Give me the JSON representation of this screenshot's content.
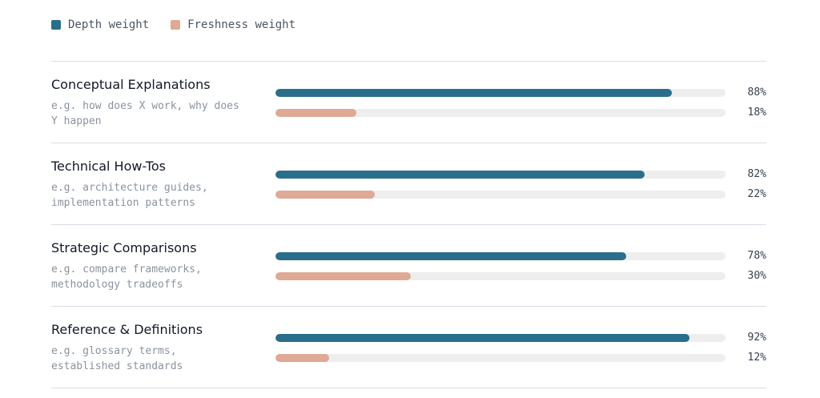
{
  "colors": {
    "depth": "#2a6e8c",
    "freshness": "#dea995"
  },
  "legend": {
    "depth_label": "Depth weight",
    "freshness_label": "Freshness weight"
  },
  "chart_data": {
    "type": "bar",
    "orientation": "horizontal",
    "categories": [
      "Conceptual Explanations",
      "Technical How-Tos",
      "Strategic Comparisons",
      "Reference & Definitions"
    ],
    "descriptions": [
      "e.g. how does X work, why does Y happen",
      "e.g. architecture guides, implementation patterns",
      "e.g. compare frameworks, methodology tradeoffs",
      "e.g. glossary terms, established standards"
    ],
    "series": [
      {
        "name": "Depth weight",
        "values": [
          88,
          82,
          78,
          92
        ],
        "labels": [
          "88%",
          "82%",
          "78%",
          "92%"
        ]
      },
      {
        "name": "Freshness weight",
        "values": [
          18,
          22,
          30,
          12
        ],
        "labels": [
          "18%",
          "22%",
          "30%",
          "12%"
        ]
      }
    ],
    "xlim": [
      0,
      100
    ],
    "unit": "%",
    "legend_position": "top-left",
    "grid": false
  }
}
